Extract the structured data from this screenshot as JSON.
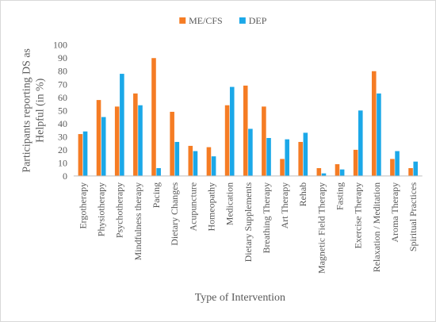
{
  "chart_data": {
    "type": "bar",
    "title": "",
    "xlabel": "Type of Intervention",
    "ylabel": "Participants reporting  DS as Helpful (in %)",
    "ylim": [
      0,
      100
    ],
    "ytick_step": 10,
    "grid": false,
    "legend_placement": "top-center",
    "categories": [
      "Ergotherapy",
      "Physiotherapy",
      "Psychotherapy",
      "Mindfulness therapy",
      "Pacing",
      "Dietary Changes",
      "Acupuncture",
      "Homeopathy",
      "Medication",
      "Dietary Supplements",
      "Breathing Therapy",
      "Art Therapy",
      "Rehab",
      "Magnetic Field Therapy",
      "Fasting",
      "Exercise Therapy",
      "Relaxation / Meditation",
      "Aroma Therapy",
      "Spiritual Practices"
    ],
    "series": [
      {
        "name": "ME/CFS",
        "color": "#F57C24",
        "values": [
          32,
          58,
          53,
          63,
          90,
          49,
          23,
          22,
          54,
          69,
          53,
          13,
          26,
          6,
          9,
          20,
          80,
          13,
          6
        ]
      },
      {
        "name": "DEP",
        "color": "#1BA8E8",
        "values": [
          34,
          45,
          78,
          54,
          6,
          26,
          19,
          15,
          68,
          36,
          29,
          28,
          33,
          2,
          5,
          50,
          63,
          19,
          11
        ]
      }
    ]
  }
}
